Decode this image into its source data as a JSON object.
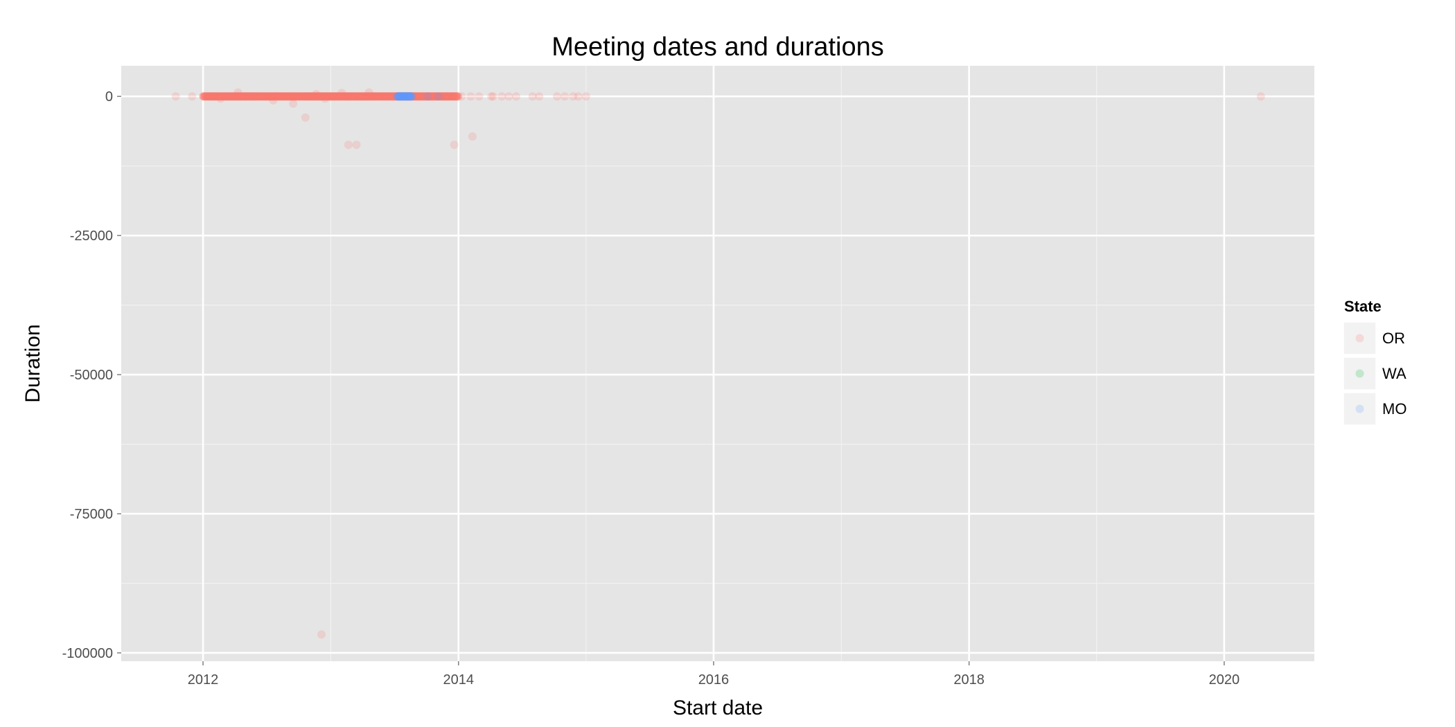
{
  "chart_data": {
    "type": "scatter",
    "title": "Meeting dates and durations",
    "xlabel": "Start date",
    "ylabel": "Duration",
    "x_is_date": true,
    "xlim": [
      "2011-05-12",
      "2020-09-15"
    ],
    "ylim": [
      -101500,
      5500
    ],
    "x_ticks": [
      "2012-01-01",
      "2014-01-01",
      "2016-01-01",
      "2018-01-01",
      "2020-01-01"
    ],
    "x_tick_labels": [
      "2012",
      "2014",
      "2016",
      "2018",
      "2020"
    ],
    "y_ticks": [
      0,
      -25000,
      -50000,
      -75000,
      -100000
    ],
    "y_tick_labels": [
      "0",
      "-25000",
      "-50000",
      "-75000",
      "-100000"
    ],
    "grid": true,
    "background": "#e5e5e5",
    "point_alpha": 0.2,
    "legend": {
      "title": "State",
      "position": "right",
      "entries": [
        {
          "label": "OR",
          "color": "#f8766d"
        },
        {
          "label": "WA",
          "color": "#00ba38"
        },
        {
          "label": "MO",
          "color": "#619cff"
        }
      ]
    },
    "series": [
      {
        "name": "OR",
        "color": "#f8766d",
        "dense_range": [
          "2012-01-01",
          "2013-12-31"
        ],
        "dense_value": 0,
        "points": [
          {
            "x": "2011-10-15",
            "y": 0
          },
          {
            "x": "2011-12-01",
            "y": 0
          },
          {
            "x": "2012-02-20",
            "y": -400
          },
          {
            "x": "2012-04-10",
            "y": 700
          },
          {
            "x": "2012-07-20",
            "y": -700
          },
          {
            "x": "2012-09-15",
            "y": -1300
          },
          {
            "x": "2012-10-20",
            "y": -3800
          },
          {
            "x": "2012-11-20",
            "y": 400
          },
          {
            "x": "2012-12-05",
            "y": -96700
          },
          {
            "x": "2012-12-15",
            "y": -400
          },
          {
            "x": "2013-02-01",
            "y": 600
          },
          {
            "x": "2013-02-20",
            "y": -8700
          },
          {
            "x": "2013-03-15",
            "y": -8700
          },
          {
            "x": "2013-04-20",
            "y": 700
          },
          {
            "x": "2013-12-20",
            "y": -8700
          },
          {
            "x": "2014-01-10",
            "y": 0
          },
          {
            "x": "2014-02-05",
            "y": 0
          },
          {
            "x": "2014-02-10",
            "y": -7200
          },
          {
            "x": "2014-03-01",
            "y": 0
          },
          {
            "x": "2014-04-05",
            "y": 0
          },
          {
            "x": "2014-04-10",
            "y": 0
          },
          {
            "x": "2014-05-05",
            "y": 0
          },
          {
            "x": "2014-05-25",
            "y": 0
          },
          {
            "x": "2014-06-15",
            "y": 0
          },
          {
            "x": "2014-08-01",
            "y": 0
          },
          {
            "x": "2014-08-20",
            "y": 0
          },
          {
            "x": "2014-10-10",
            "y": 0
          },
          {
            "x": "2014-11-01",
            "y": 0
          },
          {
            "x": "2014-11-25",
            "y": 0
          },
          {
            "x": "2014-12-10",
            "y": 0
          },
          {
            "x": "2015-01-01",
            "y": 0
          },
          {
            "x": "2020-04-15",
            "y": 0
          }
        ]
      },
      {
        "name": "MO",
        "color": "#619cff",
        "dense_range": [
          "2013-07-10",
          "2013-08-20"
        ],
        "dense_value": 0,
        "points": [
          {
            "x": "2013-10-05",
            "y": 0
          },
          {
            "x": "2013-11-05",
            "y": 0
          }
        ]
      }
    ]
  }
}
